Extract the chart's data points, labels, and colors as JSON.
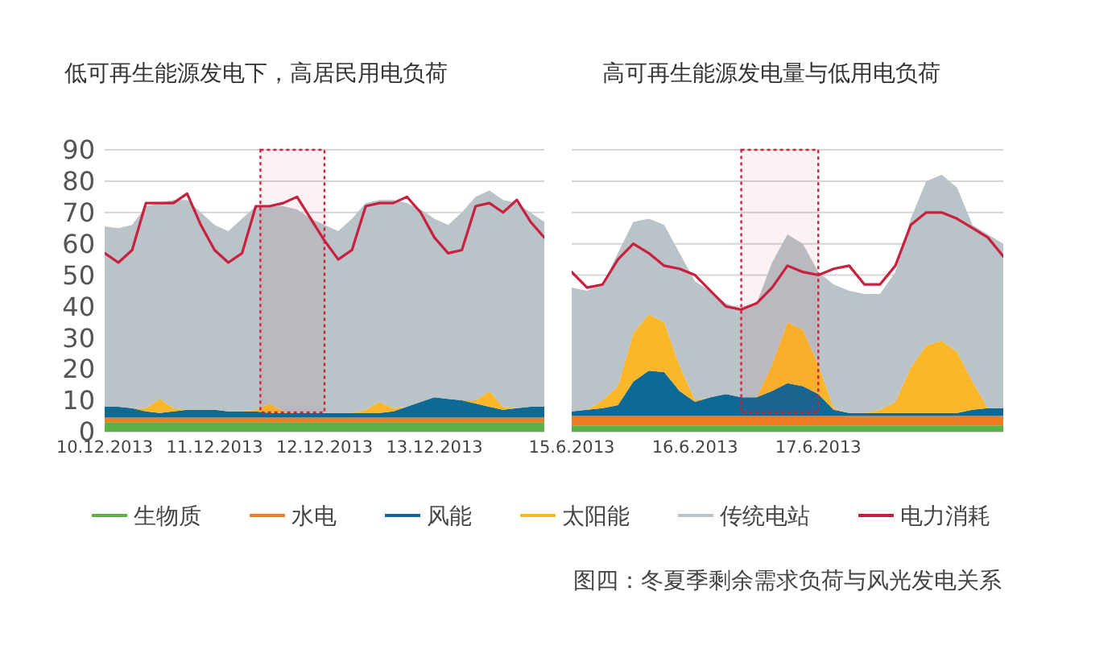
{
  "chart_data": [
    {
      "type": "area",
      "stacked": true,
      "title": "低可再生能源发电下，高居民用电负荷",
      "legend": "bottom",
      "grid": "y",
      "x": [
        "2013-12-10T00:00",
        "2013-12-10T03:00",
        "2013-12-10T06:00",
        "2013-12-10T09:00",
        "2013-12-10T12:00",
        "2013-12-10T15:00",
        "2013-12-10T18:00",
        "2013-12-10T21:00",
        "2013-12-11T00:00",
        "2013-12-11T03:00",
        "2013-12-11T06:00",
        "2013-12-11T09:00",
        "2013-12-11T12:00",
        "2013-12-11T15:00",
        "2013-12-11T18:00",
        "2013-12-11T21:00",
        "2013-12-12T00:00",
        "2013-12-12T03:00",
        "2013-12-12T06:00",
        "2013-12-12T09:00",
        "2013-12-12T12:00",
        "2013-12-12T15:00",
        "2013-12-12T18:00",
        "2013-12-12T21:00",
        "2013-12-13T00:00",
        "2013-12-13T03:00",
        "2013-12-13T06:00",
        "2013-12-13T09:00",
        "2013-12-13T12:00",
        "2013-12-13T15:00",
        "2013-12-13T18:00",
        "2013-12-13T21:00",
        "2013-12-14T00:00"
      ],
      "xlim": [
        "2013-12-10T00:00",
        "2013-12-14T00:00"
      ],
      "xticks": [
        {
          "value": "2013-12-10",
          "label": "10.12.2013"
        },
        {
          "value": "2013-12-11",
          "label": "11.12.2013"
        },
        {
          "value": "2013-12-12",
          "label": "12.12.2013"
        },
        {
          "value": "2013-12-13",
          "label": "13.12.2013"
        }
      ],
      "ylim": [
        0,
        90
      ],
      "yticks": [
        0,
        10,
        20,
        30,
        40,
        50,
        60,
        70,
        80,
        90
      ],
      "bands": [
        {
          "axis": "x",
          "from": "2013-12-11T10:00",
          "to": "2013-12-12T00:00",
          "color": "#d0213f"
        }
      ],
      "series": [
        {
          "name": "生物质",
          "color": "#5bb046",
          "values": [
            3,
            3,
            3,
            3,
            3,
            3,
            3,
            3,
            3,
            3,
            3,
            3,
            3,
            3,
            3,
            3,
            3,
            3,
            3,
            3,
            3,
            3,
            3,
            3,
            3,
            3,
            3,
            3,
            3,
            3,
            3,
            3,
            3
          ]
        },
        {
          "name": "水电",
          "color": "#ef7d22",
          "values": [
            1.5,
            1.5,
            1.5,
            1.5,
            1.5,
            1.5,
            1.5,
            1.5,
            1.5,
            1.5,
            1.5,
            1.5,
            1.5,
            1.5,
            1.5,
            1.5,
            1.5,
            1.5,
            1.5,
            1.5,
            1.5,
            1.5,
            1.5,
            1.5,
            1.5,
            1.5,
            1.5,
            1.5,
            1.5,
            1.5,
            1.5,
            1.5,
            1.5
          ]
        },
        {
          "name": "风能",
          "color": "#0e6a94",
          "values": [
            3.5,
            3.5,
            3,
            2,
            1.5,
            2,
            2.5,
            2.5,
            2.5,
            2,
            2,
            2,
            1.5,
            1.5,
            1.5,
            1.5,
            1.5,
            1.5,
            1.5,
            1.5,
            1.5,
            2,
            3.5,
            5,
            6.5,
            6,
            5.5,
            4.5,
            3.5,
            2.5,
            3,
            3.5,
            3.5
          ]
        },
        {
          "name": "太阳能",
          "color": "#fbb62a",
          "values": [
            0,
            0,
            0,
            1,
            4.5,
            1,
            0,
            0,
            0,
            0,
            0,
            0.5,
            3,
            0.5,
            0,
            0,
            0,
            0,
            0,
            1,
            3.5,
            1,
            0,
            0,
            0,
            0,
            0,
            1,
            5,
            1,
            0,
            0,
            0
          ]
        },
        {
          "name": "传统电站",
          "color": "#b9c3c8",
          "values": [
            57.5,
            57,
            58.5,
            64.5,
            62.5,
            66.5,
            67,
            63,
            59,
            57.5,
            61.5,
            65,
            63,
            65.5,
            65,
            62,
            60,
            58,
            62,
            66,
            64.5,
            66.5,
            65,
            61.5,
            57,
            55.5,
            60,
            65,
            64,
            66,
            65.5,
            62,
            59
          ]
        },
        {
          "name": "电力消耗",
          "type": "line",
          "color": "#c8203f",
          "values": [
            57,
            54,
            58,
            73,
            73,
            73,
            76,
            66,
            58,
            54,
            57,
            72,
            72,
            73,
            75,
            68,
            61,
            55,
            58,
            72,
            73,
            73,
            75,
            70,
            62,
            57,
            58,
            72,
            73,
            70,
            74,
            67,
            62
          ]
        }
      ]
    },
    {
      "type": "area",
      "stacked": true,
      "title": "高可再生能源发电量与低用电负荷",
      "grid": "y",
      "tick_labels": "x",
      "annotations": [
        "图四：冬夏季剩余需求负荷与风光发电关系"
      ],
      "x": [
        "2013-06-15T00:00",
        "2013-06-15T03:00",
        "2013-06-15T06:00",
        "2013-06-15T09:00",
        "2013-06-15T12:00",
        "2013-06-15T15:00",
        "2013-06-15T18:00",
        "2013-06-15T21:00",
        "2013-06-16T00:00",
        "2013-06-16T03:00",
        "2013-06-16T06:00",
        "2013-06-16T09:00",
        "2013-06-16T12:00",
        "2013-06-16T15:00",
        "2013-06-16T18:00",
        "2013-06-16T21:00",
        "2013-06-17T00:00",
        "2013-06-17T03:00",
        "2013-06-17T06:00",
        "2013-06-17T09:00",
        "2013-06-17T12:00",
        "2013-06-17T15:00",
        "2013-06-17T18:00",
        "2013-06-17T21:00",
        "2013-06-18T00:00",
        "2013-06-18T03:00",
        "2013-06-18T06:00",
        "2013-06-18T09:00",
        "2013-06-18T12:00"
      ],
      "xlim": [
        "2013-06-15T00:00",
        "2013-06-18T12:00"
      ],
      "xticks": [
        {
          "value": "2013-06-15",
          "label": "15.6.2013"
        },
        {
          "value": "2013-06-16",
          "label": "16.6.2013"
        },
        {
          "value": "2013-06-17",
          "label": "17.6.2013"
        }
      ],
      "ylim": [
        0,
        90
      ],
      "yticks": [
        0,
        10,
        20,
        30,
        40,
        50,
        60,
        70,
        80,
        90
      ],
      "bands": [
        {
          "axis": "x",
          "from": "2013-06-16T09:00",
          "to": "2013-06-17T00:00",
          "color": "#d0213f"
        }
      ],
      "series": [
        {
          "color": "#5bb046",
          "values": [
            2,
            2,
            2,
            2,
            2,
            2,
            2,
            2,
            2,
            2,
            2,
            2,
            2,
            2,
            2,
            2,
            2,
            2,
            2,
            2,
            2,
            2,
            2,
            2,
            2,
            2,
            2,
            2,
            2
          ]
        },
        {
          "color": "#ef7d22",
          "values": [
            3,
            3,
            3,
            3,
            3,
            3,
            3,
            3,
            3,
            3,
            3,
            3,
            3,
            3,
            3,
            3,
            3,
            3,
            3,
            3,
            3,
            3,
            3,
            3,
            3,
            3,
            3,
            3,
            3
          ]
        },
        {
          "color": "#0e6a94",
          "values": [
            1.5,
            2,
            2.5,
            3.5,
            11,
            14.5,
            14,
            8,
            4.5,
            6,
            7,
            6,
            6,
            8,
            10.5,
            9.5,
            7,
            2,
            1,
            1,
            1,
            1,
            1,
            1,
            1,
            1,
            2,
            2.5,
            2.5
          ]
        },
        {
          "color": "#fbb62a",
          "values": [
            0,
            0,
            2.5,
            6,
            15.5,
            18,
            16,
            8,
            0.5,
            0,
            0,
            0,
            0,
            8.5,
            19.5,
            18,
            9.5,
            0.5,
            0,
            0,
            1,
            3.5,
            14.5,
            21.5,
            23,
            19.5,
            9,
            0,
            0
          ]
        },
        {
          "color": "#b9c3c8",
          "values": [
            39.5,
            38,
            37,
            42.5,
            35.5,
            30.5,
            31,
            36,
            38,
            34,
            29,
            28,
            30,
            32.5,
            28,
            27.5,
            29.5,
            39.5,
            39,
            38,
            37,
            41.5,
            47.5,
            52.5,
            53,
            52.5,
            50,
            55.5,
            52.5
          ]
        },
        {
          "type": "line",
          "color": "#c8203f",
          "values": [
            51,
            46,
            47,
            55,
            60,
            57,
            53,
            52,
            50,
            45,
            40,
            39,
            41,
            46,
            53,
            51,
            50,
            52,
            53,
            47,
            47,
            53,
            66,
            70,
            70,
            68,
            65,
            62,
            56
          ]
        }
      ]
    }
  ]
}
